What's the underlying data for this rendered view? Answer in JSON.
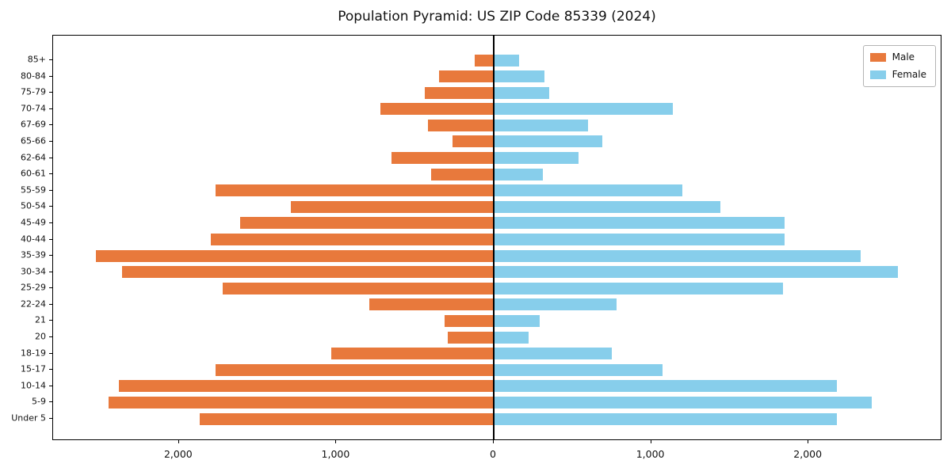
{
  "title": "Population Pyramid: US ZIP Code 85339 (2024)",
  "legend": {
    "male_label": "Male",
    "female_label": "Female"
  },
  "colors": {
    "male": "#E8793C",
    "female": "#87CEEB",
    "axis": "#000000"
  },
  "chart_data": {
    "type": "bar",
    "orientation": "horizontal-pyramid",
    "title": "Population Pyramid: US ZIP Code 85339 (2024)",
    "categories": [
      "85+",
      "80-84",
      "75-79",
      "70-74",
      "67-69",
      "65-66",
      "62-64",
      "60-61",
      "55-59",
      "50-54",
      "45-49",
      "40-44",
      "35-39",
      "30-34",
      "25-29",
      "22-24",
      "21",
      "20",
      "18-19",
      "15-17",
      "10-14",
      "5-9",
      "Under 5"
    ],
    "series": [
      {
        "name": "Male",
        "color": "#E8793C",
        "side": "left",
        "values": [
          120,
          350,
          440,
          720,
          420,
          260,
          650,
          400,
          1770,
          1290,
          1610,
          1800,
          2530,
          2360,
          1720,
          790,
          310,
          290,
          1030,
          1770,
          2380,
          2450,
          1870
        ]
      },
      {
        "name": "Female",
        "color": "#87CEEB",
        "side": "right",
        "values": [
          160,
          320,
          350,
          1140,
          600,
          690,
          540,
          310,
          1200,
          1440,
          1850,
          1850,
          2330,
          2570,
          1840,
          780,
          290,
          220,
          750,
          1070,
          2180,
          2400,
          2180
        ]
      }
    ],
    "xlim": [
      -2800,
      2850
    ],
    "x_ticks": [
      {
        "value": -2000,
        "label": "2,000"
      },
      {
        "value": -1000,
        "label": "1,000"
      },
      {
        "value": 0,
        "label": "0"
      },
      {
        "value": 1000,
        "label": "1,000"
      },
      {
        "value": 2000,
        "label": "2,000"
      }
    ],
    "legend_position": "upper right",
    "grid": false
  }
}
